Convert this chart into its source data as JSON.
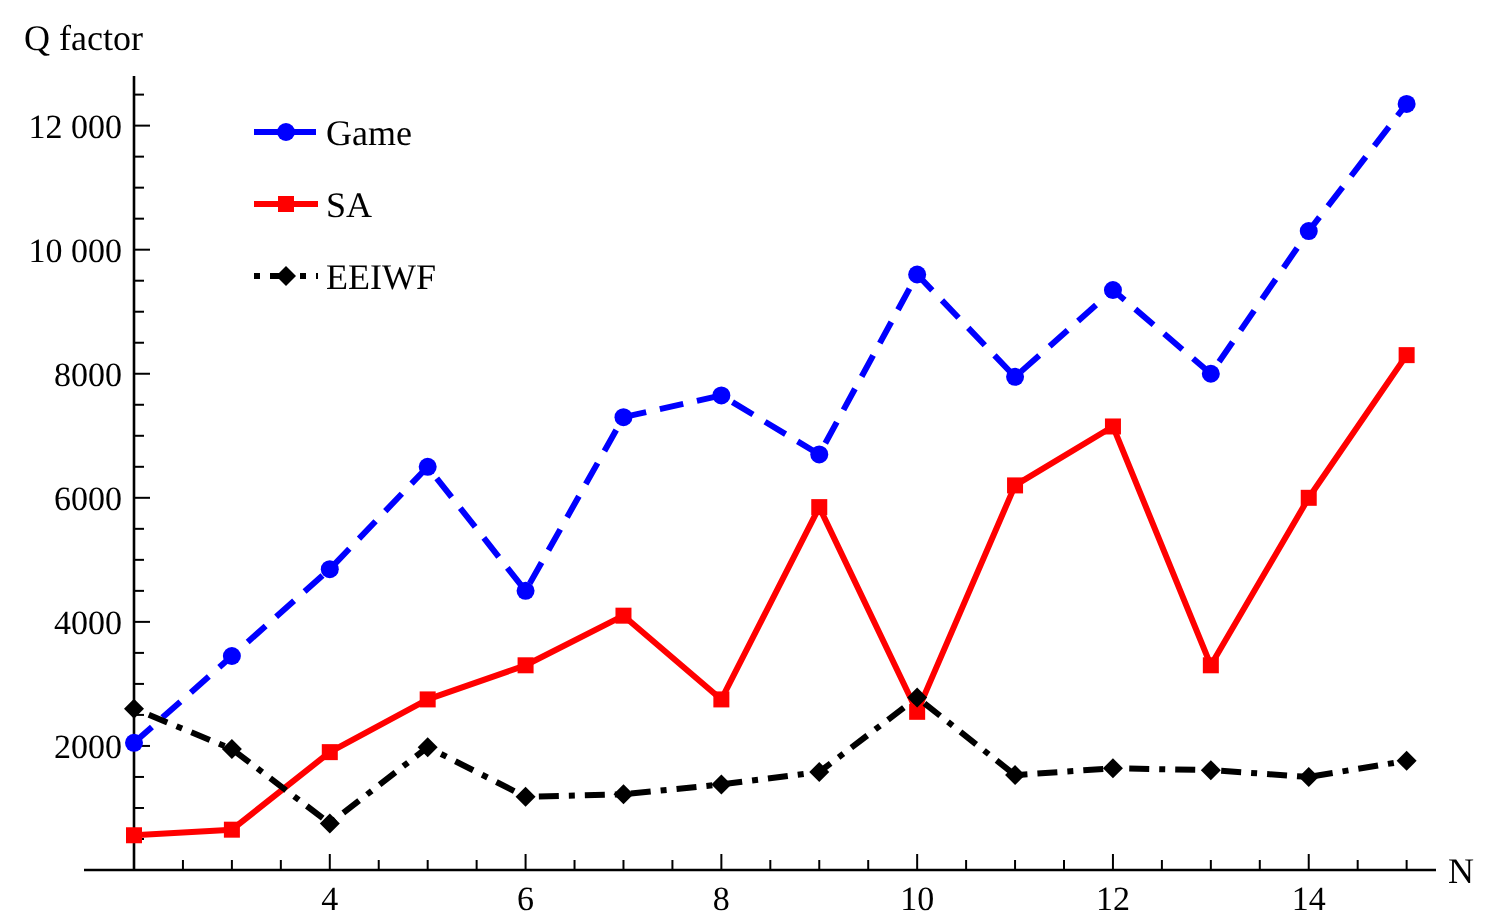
{
  "chart_data": {
    "type": "line",
    "xlabel": "N",
    "ylabel": "Q factor",
    "x": [
      2,
      3,
      4,
      5,
      6,
      7,
      8,
      9,
      10,
      11,
      12,
      13,
      14,
      15
    ],
    "series": [
      {
        "name": "Game",
        "color": "#0000ff",
        "marker": "circle",
        "line_style": "dashed",
        "values": [
          2050,
          3450,
          4850,
          6500,
          4500,
          7300,
          7650,
          6700,
          9600,
          7950,
          9350,
          8000,
          10300,
          12350
        ]
      },
      {
        "name": "SA",
        "color": "#ff0000",
        "marker": "square",
        "line_style": "solid",
        "values": [
          560,
          650,
          1900,
          2750,
          3300,
          4100,
          2750,
          5850,
          2550,
          6200,
          7150,
          3300,
          6000,
          8300
        ]
      },
      {
        "name": "EEIWF",
        "color": "#000000",
        "marker": "diamond",
        "line_style": "dashdot",
        "values": [
          2600,
          1950,
          750,
          1980,
          1180,
          1220,
          1380,
          1580,
          2780,
          1530,
          1640,
          1610,
          1500,
          1760
        ]
      }
    ],
    "xlim": [
      2,
      15.3
    ],
    "ylim": [
      0,
      12800
    ],
    "xticks": [
      {
        "value": 2.5,
        "label": null
      },
      {
        "value": 3,
        "label": null
      },
      {
        "value": 3.5,
        "label": null
      },
      4,
      {
        "value": 4.5,
        "label": null
      },
      {
        "value": 5,
        "label": null
      },
      {
        "value": 5.5,
        "label": null
      },
      6,
      {
        "value": 6.5,
        "label": null
      },
      {
        "value": 7,
        "label": null
      },
      {
        "value": 7.5,
        "label": null
      },
      8,
      {
        "value": 8.5,
        "label": null
      },
      {
        "value": 9,
        "label": null
      },
      {
        "value": 9.5,
        "label": null
      },
      10,
      {
        "value": 10.5,
        "label": null
      },
      {
        "value": 11,
        "label": null
      },
      {
        "value": 11.5,
        "label": null
      },
      12,
      {
        "value": 12.5,
        "label": null
      },
      {
        "value": 13,
        "label": null
      },
      {
        "value": 13.5,
        "label": null
      },
      14,
      {
        "value": 14.5,
        "label": null
      },
      {
        "value": 15,
        "label": null
      }
    ],
    "yticks": [
      {
        "value": 500,
        "label": null
      },
      {
        "value": 1000,
        "label": null
      },
      {
        "value": 1500,
        "label": null
      },
      2000,
      {
        "value": 2500,
        "label": null
      },
      {
        "value": 3000,
        "label": null
      },
      {
        "value": 3500,
        "label": null
      },
      4000,
      {
        "value": 4500,
        "label": null
      },
      {
        "value": 5000,
        "label": null
      },
      {
        "value": 5500,
        "label": null
      },
      6000,
      {
        "value": 6500,
        "label": null
      },
      {
        "value": 7000,
        "label": null
      },
      {
        "value": 7500,
        "label": null
      },
      8000,
      {
        "value": 8500,
        "label": null
      },
      {
        "value": 9000,
        "label": null
      },
      {
        "value": 9500,
        "label": null
      },
      {
        "value": 10000,
        "label": "10 000"
      },
      {
        "value": 10500,
        "label": null
      },
      {
        "value": 11000,
        "label": null
      },
      {
        "value": 11500,
        "label": null
      },
      {
        "value": 12000,
        "label": "12 000"
      },
      {
        "value": 12500,
        "label": null
      }
    ],
    "grid": false,
    "legend": "top left"
  }
}
